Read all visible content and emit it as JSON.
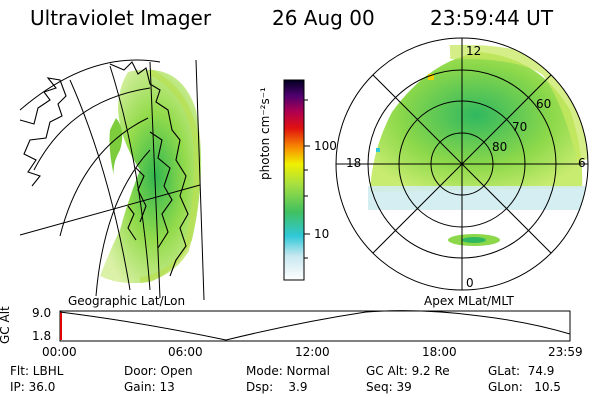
{
  "header": {
    "instrument": "Ultraviolet Imager",
    "date": "26 Aug 00",
    "time": "23:59:44 UT"
  },
  "geo_panel": {
    "caption": "Geographic Lat/Lon"
  },
  "polar_panel": {
    "caption": "Apex MLat/MLT",
    "mlt_labels": [
      "12",
      "18",
      "6",
      "0"
    ],
    "lat_labels": [
      "60",
      "70",
      "80"
    ]
  },
  "colorbar": {
    "unit_label": "photon cm⁻²s⁻¹",
    "ticks": [
      "100",
      "10"
    ],
    "scale": "log"
  },
  "altitude_plot": {
    "ylabel": "GC Alt",
    "yticks": [
      "9.0",
      "1.8"
    ],
    "xticks": [
      "00:00",
      "06:00",
      "12:00",
      "18:00",
      "23:59"
    ],
    "current_marker_color": "#e00000"
  },
  "info": {
    "filter": "Flt: LBHL",
    "door": "Door: Open",
    "mode": "Mode: Normal",
    "gc_alt": "GC Alt: 9.2 Re",
    "glat": "GLat:  74.9",
    "ip": "IP: 36.0",
    "gain": "Gain: 13",
    "dsp": "Dsp:    3.9",
    "seq": "Seq: 39",
    "glon": "GLon:   10.5"
  }
}
